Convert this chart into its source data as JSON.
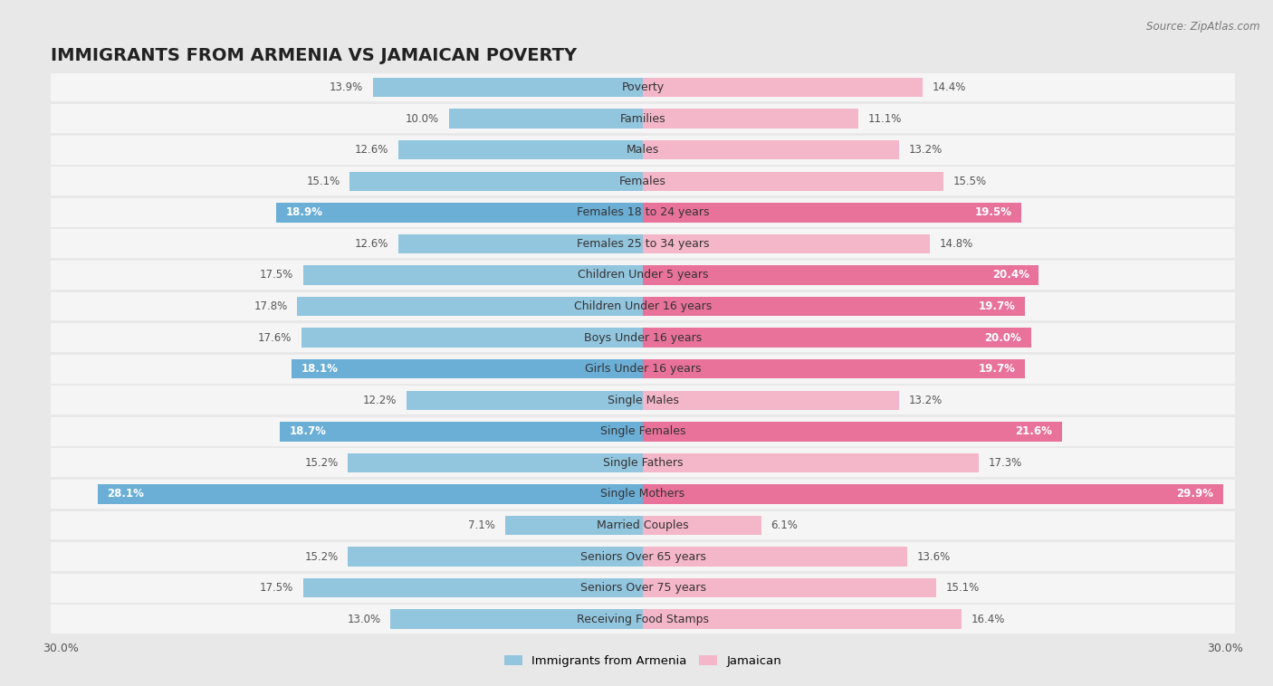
{
  "title": "IMMIGRANTS FROM ARMENIA VS JAMAICAN POVERTY",
  "source": "Source: ZipAtlas.com",
  "categories": [
    "Poverty",
    "Families",
    "Males",
    "Females",
    "Females 18 to 24 years",
    "Females 25 to 34 years",
    "Children Under 5 years",
    "Children Under 16 years",
    "Boys Under 16 years",
    "Girls Under 16 years",
    "Single Males",
    "Single Females",
    "Single Fathers",
    "Single Mothers",
    "Married Couples",
    "Seniors Over 65 years",
    "Seniors Over 75 years",
    "Receiving Food Stamps"
  ],
  "armenia_values": [
    13.9,
    10.0,
    12.6,
    15.1,
    18.9,
    12.6,
    17.5,
    17.8,
    17.6,
    18.1,
    12.2,
    18.7,
    15.2,
    28.1,
    7.1,
    15.2,
    17.5,
    13.0
  ],
  "jamaican_values": [
    14.4,
    11.1,
    13.2,
    15.5,
    19.5,
    14.8,
    20.4,
    19.7,
    20.0,
    19.7,
    13.2,
    21.6,
    17.3,
    29.9,
    6.1,
    13.6,
    15.1,
    16.4
  ],
  "armenia_color_normal": "#92c5de",
  "armenia_color_highlight": "#6baed6",
  "jamaican_color_normal": "#f4b6c9",
  "jamaican_color_highlight": "#e8729a",
  "background_color": "#e8e8e8",
  "row_bg_color": "#f5f5f5",
  "xlim": 30.0,
  "title_fontsize": 14,
  "label_fontsize": 9,
  "value_fontsize": 8.5,
  "legend_fontsize": 9.5,
  "armenia_highlight_threshold": 17.9,
  "jamaican_highlight_threshold": 19.4
}
